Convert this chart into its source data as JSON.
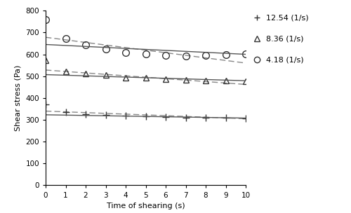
{
  "xlabel": "Time of shearing (s)",
  "ylabel": "Shear stress (Pa)",
  "xlim": [
    0,
    10
  ],
  "ylim": [
    0,
    800
  ],
  "xticks": [
    0,
    1,
    2,
    3,
    4,
    5,
    6,
    7,
    8,
    9,
    10
  ],
  "yticks": [
    0,
    100,
    200,
    300,
    400,
    500,
    600,
    700,
    800
  ],
  "series": [
    {
      "label": "12.54 (1/s)",
      "marker": "+",
      "markersize": 7,
      "markerfacecolor": "#333333",
      "data_x": [
        0,
        1,
        2,
        3,
        4,
        5,
        6,
        7,
        8,
        9,
        10
      ],
      "data_y": [
        370,
        335,
        327,
        322,
        318,
        315,
        313,
        311,
        310,
        309,
        308
      ],
      "kinetic_y0": 323,
      "kinetic_y10": 308,
      "weltman_y0": 340,
      "weltman_y10": 305
    },
    {
      "label": "8.36 (1/s)",
      "marker": "^",
      "markersize": 6,
      "markerfacecolor": "none",
      "data_x": [
        0,
        1,
        2,
        3,
        4,
        5,
        6,
        7,
        8,
        9,
        10
      ],
      "data_y": [
        573,
        523,
        513,
        504,
        494,
        491,
        487,
        483,
        481,
        479,
        478
      ],
      "kinetic_y0": 507,
      "kinetic_y10": 479,
      "weltman_y0": 528,
      "weltman_y10": 462
    },
    {
      "label": "4.18 (1/s)",
      "marker": "o",
      "markersize": 7,
      "markerfacecolor": "none",
      "data_x": [
        0,
        1,
        2,
        3,
        4,
        5,
        6,
        7,
        8,
        9,
        10
      ],
      "data_y": [
        760,
        672,
        642,
        623,
        608,
        603,
        596,
        593,
        596,
        600,
        601
      ],
      "kinetic_y0": 645,
      "kinetic_y10": 600,
      "weltman_y0": 678,
      "weltman_y10": 560
    }
  ],
  "solid_color": "#555555",
  "dashed_color": "#888888",
  "marker_color": "#333333",
  "bg_color": "#ffffff"
}
